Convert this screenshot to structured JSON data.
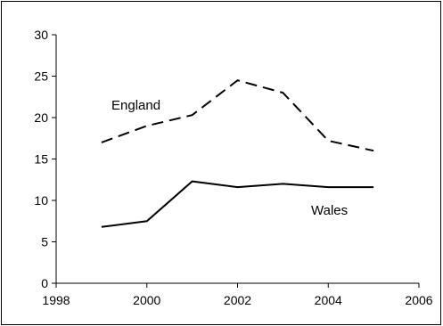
{
  "chart_data": {
    "type": "line",
    "title": "",
    "xlabel": "",
    "ylabel": "",
    "xlim": [
      1998,
      2006
    ],
    "ylim": [
      0,
      30
    ],
    "xticks": [
      1998,
      2000,
      2002,
      2004,
      2006
    ],
    "yticks": [
      0,
      5,
      10,
      15,
      20,
      25,
      30
    ],
    "grid": false,
    "legend": "none",
    "series": [
      {
        "name": "England",
        "style": "dashed",
        "color": "#000000",
        "x": [
          1999,
          2000,
          2001,
          2002,
          2003,
          2004,
          2005
        ],
        "values": [
          17.0,
          19.0,
          20.3,
          24.5,
          23.0,
          17.2,
          16.0
        ]
      },
      {
        "name": "Wales",
        "style": "solid",
        "color": "#000000",
        "x": [
          1999,
          2000,
          2001,
          2002,
          2003,
          2004,
          2005
        ],
        "values": [
          6.8,
          7.5,
          12.3,
          11.6,
          12.0,
          11.6,
          11.6
        ]
      }
    ]
  }
}
